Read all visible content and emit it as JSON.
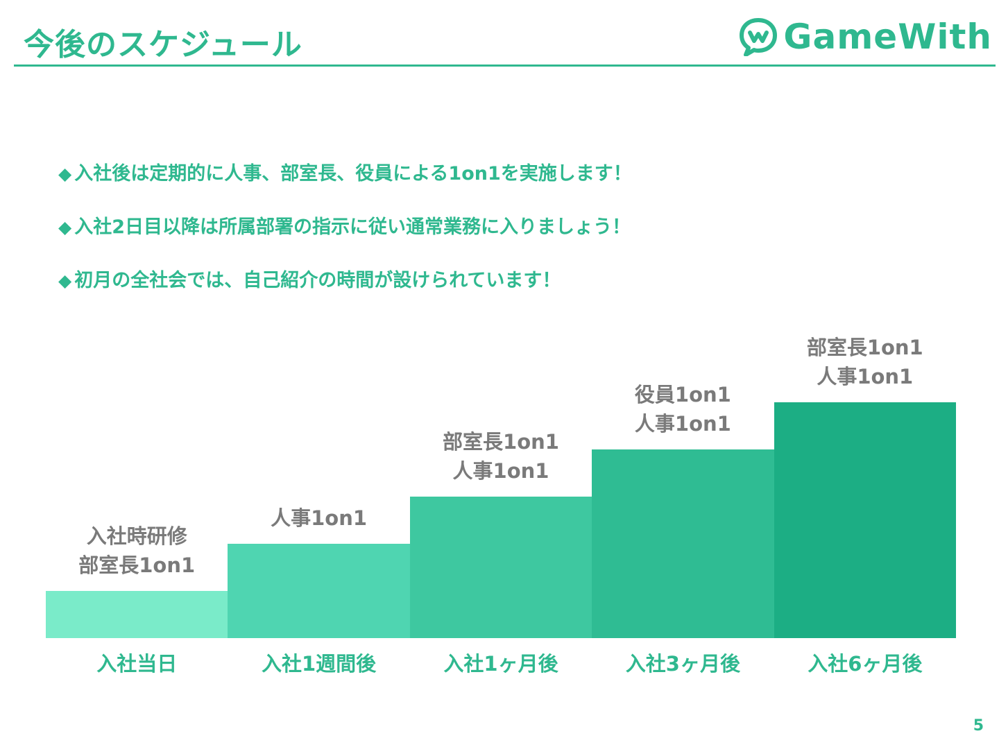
{
  "header": {
    "title": "今後のスケジュール",
    "logo_text": "GameWith",
    "accent_color": "#2fb88f"
  },
  "bullets": [
    "入社後は定期的に人事、部室長、役員による1on1を実施します！",
    "入社2日目以降は所属部署の指示に従い通常業務に入りましょう！",
    "初月の全社会では、自己紹介の時間が設けられています！"
  ],
  "bullet_marker": "◆",
  "schedule": {
    "steps": [
      {
        "category": "入社当日",
        "events": [
          "入社時研修",
          "部室長1on1"
        ],
        "level": 1,
        "color": "#7aebc9"
      },
      {
        "category": "入社1週間後",
        "events": [
          "人事1on1"
        ],
        "level": 2,
        "color": "#4fd5b1"
      },
      {
        "category": "入社1ヶ月後",
        "events": [
          "部室長1on1",
          "人事1on1"
        ],
        "level": 3,
        "color": "#3ec8a0"
      },
      {
        "category": "入社3ヶ月後",
        "events": [
          "役員1on1",
          "人事1on1"
        ],
        "level": 4,
        "color": "#2fbc93"
      },
      {
        "category": "入社6ヶ月後",
        "events": [
          "部室長1on1",
          "人事1on1"
        ],
        "level": 5,
        "color": "#1cae84"
      }
    ]
  },
  "page_number": "5"
}
